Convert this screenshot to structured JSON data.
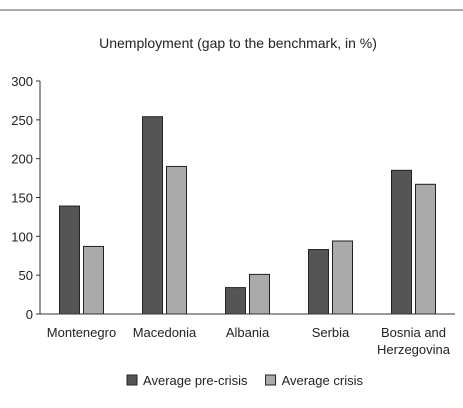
{
  "chart_data": {
    "type": "bar",
    "title": "Unemployment (gap to the benchmark, in %)",
    "categories": [
      "Montenegro",
      "Macedonia",
      "Albania",
      "Serbia",
      "Bosnia and Herzegovina"
    ],
    "series": [
      {
        "name": "Average pre-crisis",
        "color": "#555555",
        "values": [
          139,
          254,
          34,
          83,
          185
        ]
      },
      {
        "name": "Average crisis",
        "color": "#aaaaaa",
        "values": [
          87,
          190,
          51,
          94,
          167
        ]
      }
    ],
    "ylim": [
      0,
      300
    ],
    "yticks": [
      0,
      50,
      100,
      150,
      200,
      250,
      300
    ],
    "grid": false,
    "legend": "bottom"
  }
}
